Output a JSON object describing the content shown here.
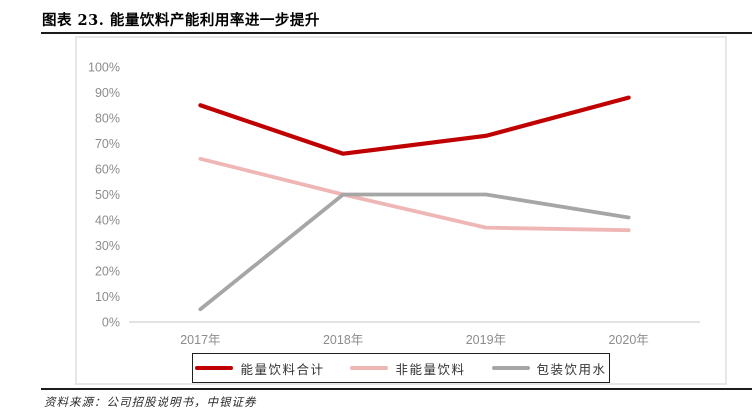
{
  "page": {
    "title": "图表 23. 能量饮料产能利用率进一步提升",
    "source_note": "资料来源：公司招股说明书，中银证券"
  },
  "chart_data": {
    "type": "line",
    "title": "能量饮料产能利用率进一步提升",
    "categories": [
      "2017年",
      "2018年",
      "2019年",
      "2020年"
    ],
    "series": [
      {
        "name": "能量饮料合计",
        "color": "#C00000",
        "stroke_width": 4.2,
        "values": [
          85,
          66,
          73,
          88
        ]
      },
      {
        "name": "非能量饮料",
        "color": "#EFB6B6",
        "stroke_width": 3.8,
        "values": [
          64,
          50,
          37,
          36
        ]
      },
      {
        "name": "包装饮用水",
        "color": "#A6A6A6",
        "stroke_width": 3.8,
        "values": [
          5,
          50,
          50,
          41
        ]
      }
    ],
    "ylim": [
      0,
      100
    ],
    "y_tick_labels": [
      "0%",
      "10%",
      "20%",
      "30%",
      "40%",
      "50%",
      "60%",
      "70%",
      "80%",
      "90%",
      "100%"
    ],
    "xlabel": "",
    "ylabel": "",
    "grid": false,
    "legend_position": "bottom",
    "axis_color": "#d9d9d9",
    "tick_label_color": "#8c8c8c"
  }
}
